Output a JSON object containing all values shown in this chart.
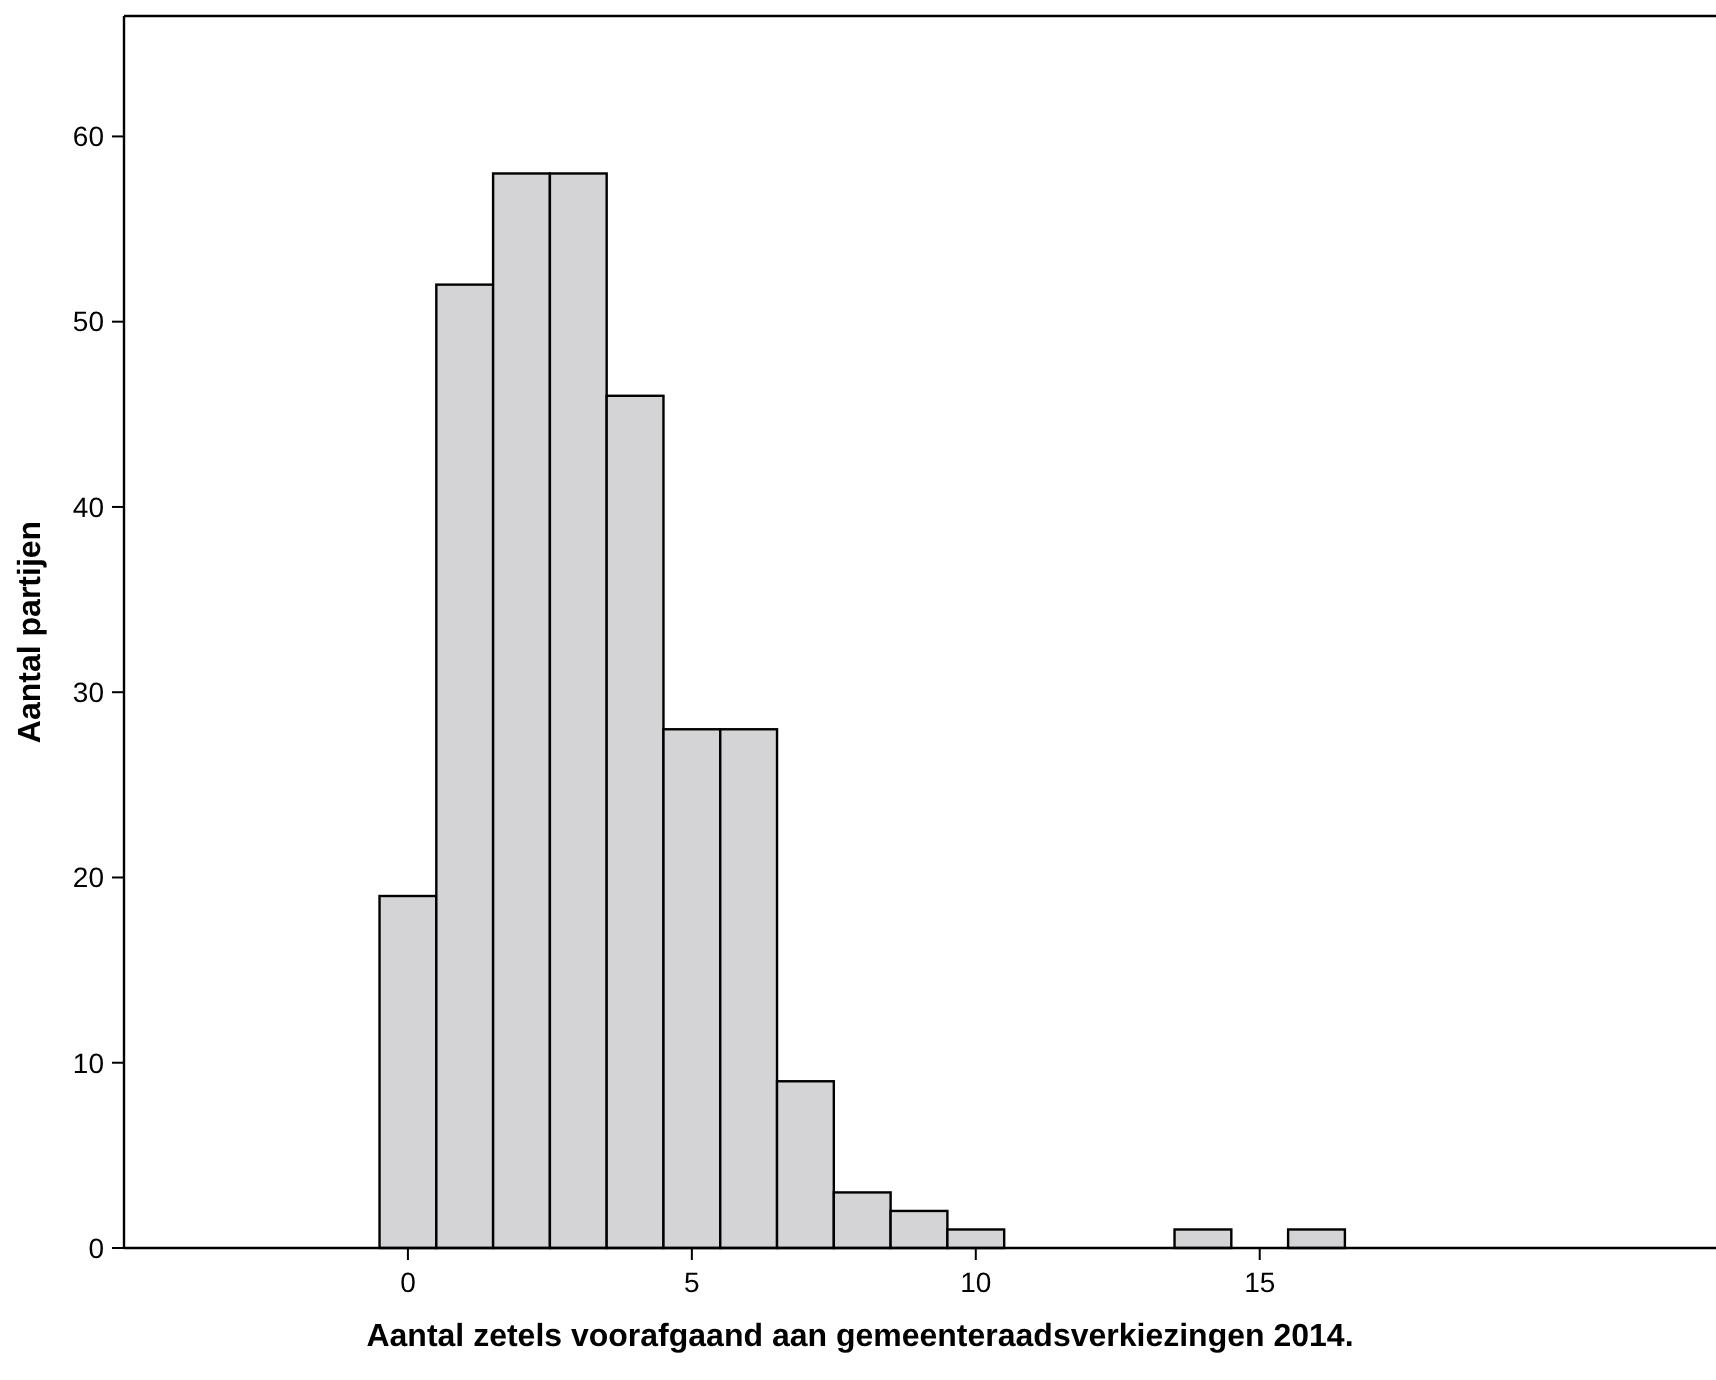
{
  "chart_data": {
    "type": "histogram",
    "xlabel": "Aantal zetels voorafgaand aan gemeenteraadsverkiezingen 2014.",
    "ylabel": "Aantal partijen",
    "bins": [
      -0.5,
      0.5,
      1.5,
      2.5,
      3.5,
      4.5,
      5.5,
      6.5,
      7.5,
      8.5,
      9.5,
      10.5,
      11.5,
      12.5,
      13.5,
      14.5,
      15.5,
      16.5
    ],
    "values": [
      19,
      52,
      58,
      58,
      46,
      28,
      28,
      9,
      3,
      2,
      1,
      0,
      0,
      0,
      1,
      0,
      1
    ],
    "color": "#d4d4d6",
    "xlim": [
      -5,
      23
    ],
    "xticks": [
      0,
      5,
      10,
      15
    ],
    "ylim": [
      0,
      66.5
    ],
    "yticks": [
      0,
      10,
      20,
      30,
      40,
      50,
      60
    ],
    "grid": false
  }
}
